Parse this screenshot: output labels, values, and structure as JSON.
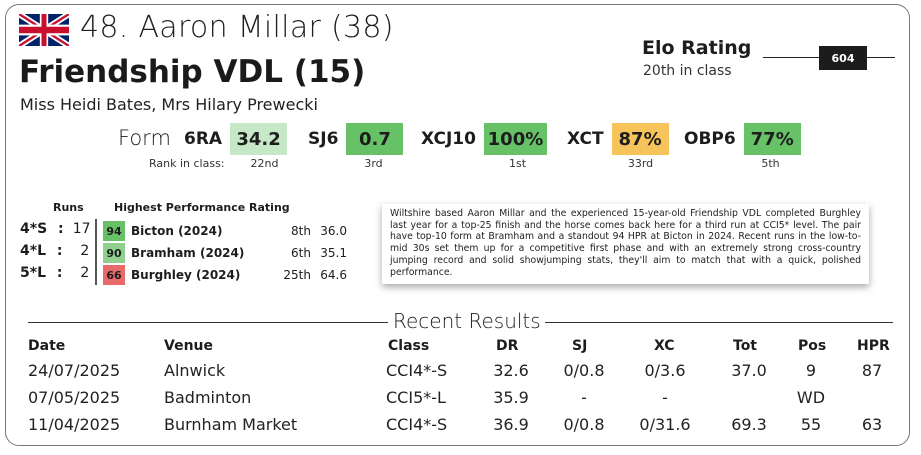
{
  "rider": {
    "name_line": "48. Aaron Millar (38)",
    "flag": "uk-flag-icon"
  },
  "horse": {
    "name_line": "Friendship VDL (15)"
  },
  "owners": "Miss Heidi Bates, Mrs Hilary Prewecki",
  "elo": {
    "title": "Elo Rating",
    "class_rank": "20th in class",
    "value": "604"
  },
  "form": {
    "label": "Form",
    "rank_label": "Rank in class:",
    "items": [
      {
        "code": "6RA",
        "value": "34.2",
        "rank": "22nd",
        "color": "#c6e8c6"
      },
      {
        "code": "SJ6",
        "value": "0.7",
        "rank": "3rd",
        "color": "#67c167"
      },
      {
        "code": "XCJ10",
        "value": "100%",
        "rank": "1st",
        "color": "#67c167"
      },
      {
        "code": "XCT",
        "value": "87%",
        "rank": "33rd",
        "color": "#f6c45a"
      },
      {
        "code": "OBP6",
        "value": "77%",
        "rank": "5th",
        "color": "#67c167"
      }
    ]
  },
  "runs": {
    "header": "Runs",
    "rows": [
      {
        "level": "4*S",
        "sep": ":",
        "count": "17"
      },
      {
        "level": "4*L",
        "sep": ":",
        "count": "2"
      },
      {
        "level": "5*L",
        "sep": ":",
        "count": "2"
      }
    ]
  },
  "hpr": {
    "header": "Highest Performance Rating",
    "rows": [
      {
        "score": "94",
        "event": "Bicton (2024)",
        "pos": "8th",
        "total": "36.0",
        "color": "#67c167"
      },
      {
        "score": "90",
        "event": "Bramham (2024)",
        "pos": "6th",
        "total": "35.1",
        "color": "#8fd08f"
      },
      {
        "score": "66",
        "event": "Burghley (2024)",
        "pos": "25th",
        "total": "64.6",
        "color": "#e96a6a"
      }
    ]
  },
  "blurb": "Wiltshire based Aaron Millar and the experienced 15-year-old Friendship VDL completed Burghley last year for a top-25 finish and the horse comes back here for a third run at CCI5* level. The pair have top-10 form at Bramham and a standout 94 HPR at Bicton in 2024. Recent runs in the low-to-mid 30s set them up for a competitive first phase and with an extremely strong cross-country jumping record and solid showjumping stats, they'll aim to match that with a quick, polished performance.",
  "recent": {
    "title": "Recent Results",
    "headers": [
      "Date",
      "Venue",
      "Class",
      "DR",
      "SJ",
      "XC",
      "Tot",
      "Pos",
      "HPR"
    ],
    "rows": [
      [
        "24/07/2025",
        "Alnwick",
        "CCI4*-S",
        "32.6",
        "0/0.8",
        "0/3.6",
        "37.0",
        "9",
        "87"
      ],
      [
        "07/05/2025",
        "Badminton",
        "CCI5*-L",
        "35.9",
        "-",
        "-",
        "",
        "WD",
        ""
      ],
      [
        "11/04/2025",
        "Burnham Market",
        "CCI4*-S",
        "36.9",
        "0/0.8",
        "0/31.6",
        "69.3",
        "55",
        "63"
      ]
    ]
  }
}
